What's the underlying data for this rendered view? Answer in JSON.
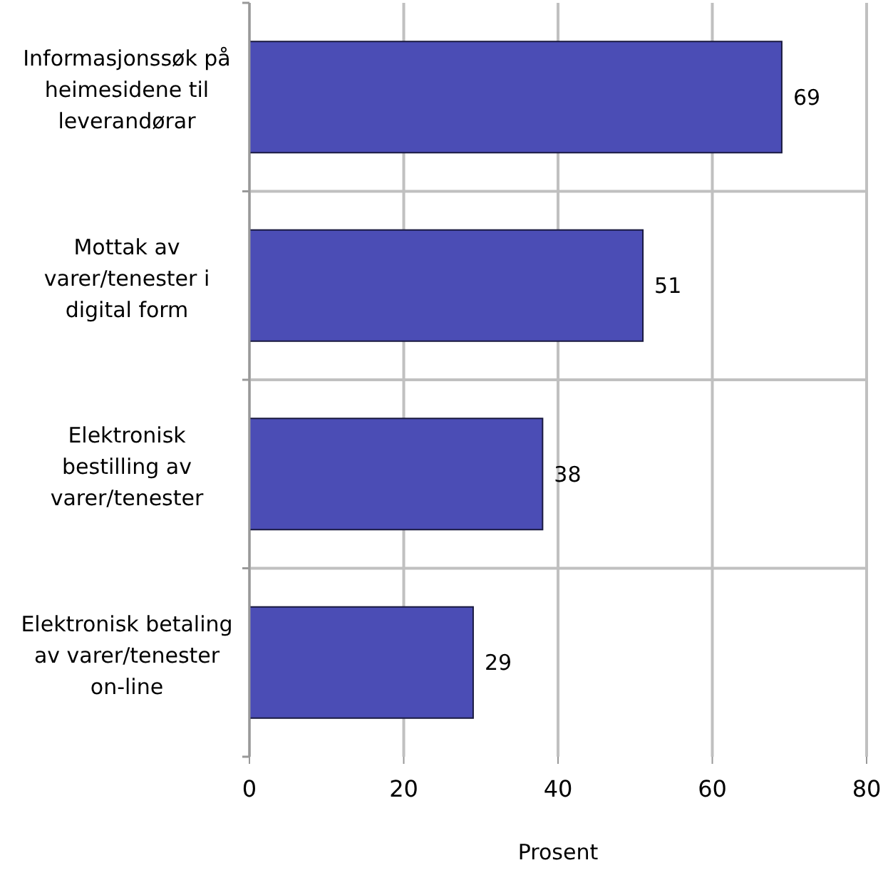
{
  "chart_data": {
    "type": "bar",
    "orientation": "horizontal",
    "categories": [
      "Informasjonssøk på heimesidene til leverandørar",
      "Mottak av varer/tenester i digital form",
      "Elektronisk bestilling av varer/tenester",
      "Elektronisk betaling av varer/tenester on-line"
    ],
    "values": [
      69,
      51,
      38,
      29
    ],
    "color": "#4b4db5",
    "xlabel": "Prosent",
    "xlim": [
      0,
      80
    ],
    "xticks": [
      0,
      20,
      40,
      60,
      80
    ],
    "grid": true,
    "data_labels": true
  }
}
